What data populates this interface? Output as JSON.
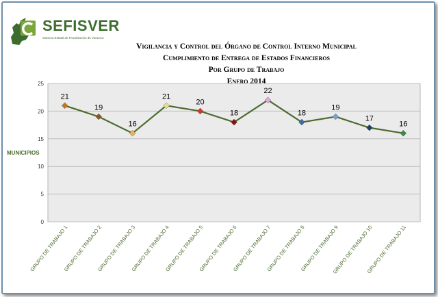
{
  "logo": {
    "name": "SEFISVER",
    "subtitle": "Sistema Estatal de Fiscalización de Veracruz"
  },
  "titles": {
    "line1": "Vigilancia y Control del Órgano de Control Interno Municipal",
    "line2": "Cumplimiento de Entrega de Estados Financieros",
    "line3": "Por Grupo de Trabajo",
    "line4": "Enero 2014"
  },
  "colors": {
    "plot_bg": "#ebebeb",
    "line": "#4c6b2e",
    "axis_text": "#4c6b2e",
    "brand": "#3d6d2e"
  },
  "chart_data": {
    "type": "line",
    "categories": [
      "GRUPO DE TRABAJO 1",
      "GRUPO DE TRABAJO 2",
      "GRUPO DE TRABAJO 3",
      "GRUPO DE TRABAJO 4",
      "GRUPO DE TRABAJO 5",
      "GRUPO DE TRABAJO 6",
      "GRUPO DE TRABAJO 7",
      "GRUPO DE TRABAJO 8",
      "GRUPO DE TRABAJO 9",
      "GRUPO DE TRABAJO 10",
      "GRUPO DE TRABAJO 11"
    ],
    "values": [
      21,
      19,
      16,
      21,
      20,
      18,
      22,
      18,
      19,
      17,
      16
    ],
    "marker_colors": [
      "#c8761e",
      "#8a5a24",
      "#f0b24a",
      "#e8e080",
      "#d03a2a",
      "#8a1010",
      "#e6a8dc",
      "#3c6aa8",
      "#7aa0d0",
      "#1e3e6a",
      "#3c8a52"
    ],
    "ylabel": "MUNICIPIOS",
    "xlabel": "",
    "ylim": [
      0,
      25
    ],
    "yticks": [
      0,
      5,
      10,
      15,
      20,
      25
    ],
    "grid": true,
    "data_labels": true
  }
}
